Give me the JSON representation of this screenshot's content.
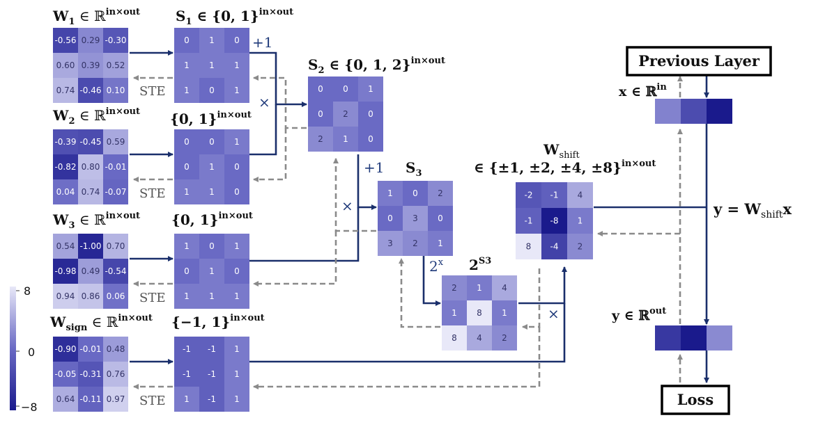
{
  "colorbar": {
    "max_label": "8",
    "mid_label": "0",
    "min_label": "−8",
    "vmin": -8,
    "vmax": 8
  },
  "colors": {
    "arrow_forward": "#1a2f6b",
    "arrow_backward": "#8a8a8a",
    "cmap_low": "#1a1a8c",
    "cmap_mid": "#6a6ac4",
    "cmap_high": "#e8e8f8"
  },
  "matrices": {
    "w1": {
      "base": "W",
      "sub": "1",
      "rest": " ∈ ℝ",
      "sup": "in×out",
      "cells": [
        [
          "-0.56",
          "0.29",
          "-0.30"
        ],
        [
          "0.60",
          "0.39",
          "0.52"
        ],
        [
          "0.74",
          "-0.46",
          "0.10"
        ]
      ],
      "vals": [
        [
          -0.56,
          0.29,
          -0.3
        ],
        [
          0.6,
          0.39,
          0.52
        ],
        [
          0.74,
          -0.46,
          0.1
        ]
      ]
    },
    "w2": {
      "base": "W",
      "sub": "2",
      "rest": " ∈ ℝ",
      "sup": "in×out",
      "cells": [
        [
          "-0.39",
          "-0.45",
          "0.59"
        ],
        [
          "-0.82",
          "0.80",
          "-0.01"
        ],
        [
          "0.04",
          "0.74",
          "-0.07"
        ]
      ],
      "vals": [
        [
          -0.39,
          -0.45,
          0.59
        ],
        [
          -0.82,
          0.8,
          -0.01
        ],
        [
          0.04,
          0.74,
          -0.07
        ]
      ]
    },
    "w3": {
      "base": "W",
      "sub": "3",
      "rest": " ∈ ℝ",
      "sup": "in×out",
      "cells": [
        [
          "0.54",
          "-1.00",
          "0.70"
        ],
        [
          "-0.98",
          "0.49",
          "-0.54"
        ],
        [
          "0.94",
          "0.86",
          "0.06"
        ]
      ],
      "vals": [
        [
          0.54,
          -1.0,
          0.7
        ],
        [
          -0.98,
          0.49,
          -0.54
        ],
        [
          0.94,
          0.86,
          0.06
        ]
      ]
    },
    "wsign": {
      "base": "W",
      "sub": "sign",
      "rest": " ∈ ℝ",
      "sup": "in×out",
      "cells": [
        [
          "-0.90",
          "-0.01",
          "0.48"
        ],
        [
          "-0.05",
          "-0.31",
          "0.76"
        ],
        [
          "0.64",
          "-0.11",
          "0.97"
        ]
      ],
      "vals": [
        [
          -0.9,
          -0.01,
          0.48
        ],
        [
          -0.05,
          -0.31,
          0.76
        ],
        [
          0.64,
          -0.11,
          0.97
        ]
      ]
    },
    "s1": {
      "base": "S",
      "sub": "1",
      "rest": " ∈ {0, 1}",
      "sup": "in×out",
      "cells": [
        [
          "0",
          "1",
          "0"
        ],
        [
          "1",
          "1",
          "1"
        ],
        [
          "1",
          "0",
          "1"
        ]
      ],
      "vals": [
        [
          0,
          1,
          0
        ],
        [
          1,
          1,
          1
        ],
        [
          1,
          0,
          1
        ]
      ]
    },
    "b2": {
      "base": "",
      "sub": "",
      "rest": "{0, 1}",
      "sup": "in×out",
      "cells": [
        [
          "0",
          "0",
          "1"
        ],
        [
          "0",
          "1",
          "0"
        ],
        [
          "1",
          "1",
          "0"
        ]
      ],
      "vals": [
        [
          0,
          0,
          1
        ],
        [
          0,
          1,
          0
        ],
        [
          1,
          1,
          0
        ]
      ]
    },
    "b3": {
      "base": "",
      "sub": "",
      "rest": "{0, 1}",
      "sup": "in×out",
      "cells": [
        [
          "1",
          "0",
          "1"
        ],
        [
          "0",
          "1",
          "0"
        ],
        [
          "1",
          "1",
          "1"
        ]
      ],
      "vals": [
        [
          1,
          0,
          1
        ],
        [
          0,
          1,
          0
        ],
        [
          1,
          1,
          1
        ]
      ]
    },
    "bsign": {
      "base": "",
      "sub": "",
      "rest": "{−1, 1}",
      "sup": "in×out",
      "cells": [
        [
          "-1",
          "-1",
          "1"
        ],
        [
          "-1",
          "-1",
          "1"
        ],
        [
          "1",
          "-1",
          "1"
        ]
      ],
      "vals": [
        [
          -1,
          -1,
          1
        ],
        [
          -1,
          -1,
          1
        ],
        [
          1,
          -1,
          1
        ]
      ]
    },
    "s2": {
      "base": "S",
      "sub": "2",
      "rest": " ∈ {0, 1, 2}",
      "sup": "in×out",
      "cells": [
        [
          "0",
          "0",
          "1"
        ],
        [
          "0",
          "2",
          "0"
        ],
        [
          "2",
          "1",
          "0"
        ]
      ],
      "vals": [
        [
          0,
          0,
          1
        ],
        [
          0,
          2,
          0
        ],
        [
          2,
          1,
          0
        ]
      ]
    },
    "s3": {
      "base": "S",
      "sub": "3",
      "rest": "",
      "sup": "",
      "cells": [
        [
          "1",
          "0",
          "2"
        ],
        [
          "0",
          "3",
          "0"
        ],
        [
          "3",
          "2",
          "1"
        ]
      ],
      "vals": [
        [
          1,
          0,
          2
        ],
        [
          0,
          3,
          0
        ],
        [
          3,
          2,
          1
        ]
      ]
    },
    "p2s3": {
      "base": "2",
      "sub": "",
      "rest": "",
      "sup": "S3",
      "cells": [
        [
          "2",
          "1",
          "4"
        ],
        [
          "1",
          "8",
          "1"
        ],
        [
          "8",
          "4",
          "2"
        ]
      ],
      "vals": [
        [
          2,
          1,
          4
        ],
        [
          1,
          8,
          1
        ],
        [
          8,
          4,
          2
        ]
      ]
    },
    "wshift": {
      "base": "W",
      "sub": "shift",
      "rest": "",
      "sup": "",
      "line2": "∈ {±1, ±2, ±4, ±8}",
      "line2_sup": "in×out",
      "cells": [
        [
          "-2",
          "-1",
          "4"
        ],
        [
          "-1",
          "-8",
          "1"
        ],
        [
          "8",
          "-4",
          "2"
        ]
      ],
      "vals": [
        [
          -2,
          -1,
          4
        ],
        [
          -1,
          -8,
          1
        ],
        [
          8,
          -4,
          2
        ]
      ]
    }
  },
  "ops": {
    "plus1_a": "+1",
    "times_a": "×",
    "plus1_b": "+1",
    "times_b": "×",
    "pow2": "2",
    "pow2_sup": "x",
    "times_c": "×"
  },
  "ste": {
    "row1": "STE",
    "row2": "STE",
    "row3": "STE",
    "row4": "STE"
  },
  "right": {
    "previous_layer": "Previous Layer",
    "x_label": "x ∈ ℝ",
    "x_sup": "in",
    "x_vec": [
      1.5,
      -3,
      -8
    ],
    "equation": {
      "lhs": "y = W",
      "sub": "shift",
      "rhs": "x"
    },
    "y_label": "y ∈ ℝ",
    "y_sup": "out",
    "y_vec": [
      -5,
      -8,
      2
    ],
    "loss": "Loss"
  }
}
